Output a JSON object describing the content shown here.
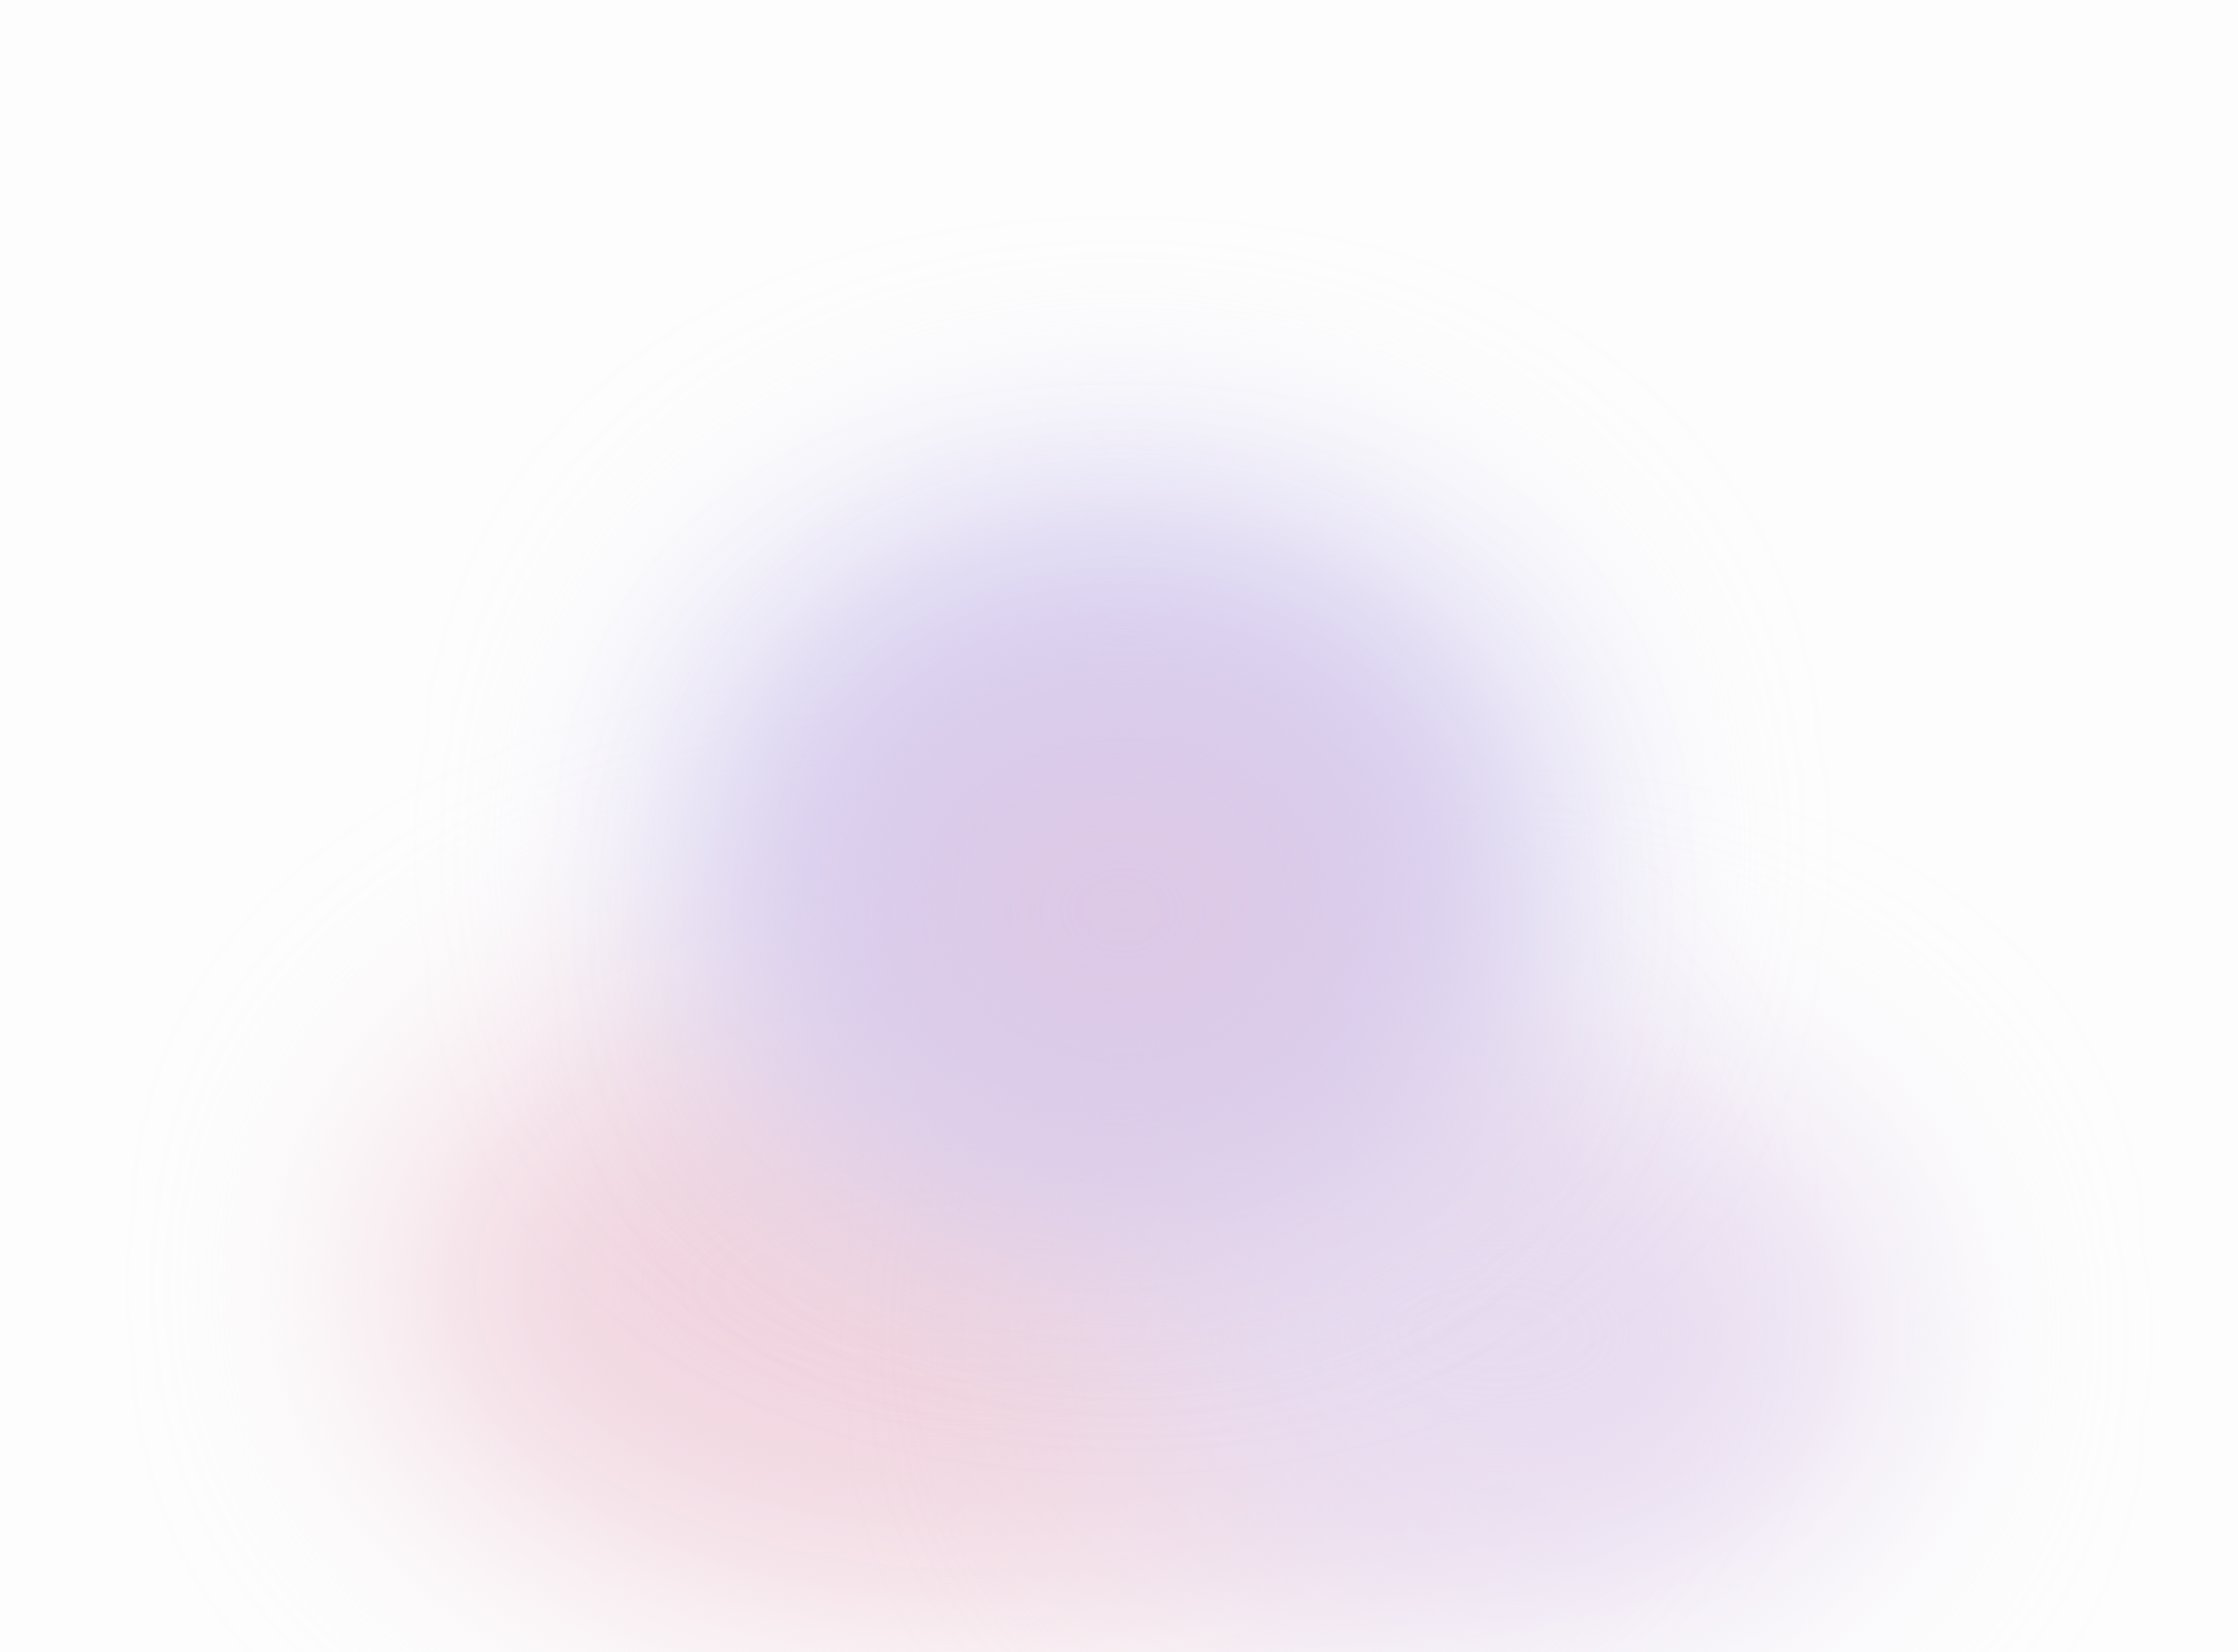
{
  "background": {
    "base_color": "#fdfdfd",
    "gradient_colors": {
      "lavender": "#d6d0f2",
      "purple": "#dcc9e6",
      "pink": "#f1d6e0",
      "violet_light": "#e8dcf0"
    }
  }
}
